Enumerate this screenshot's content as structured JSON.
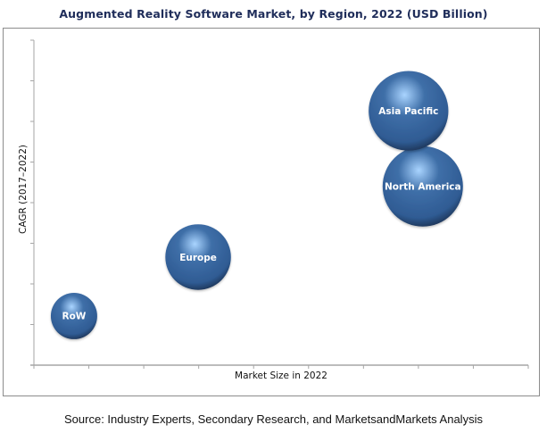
{
  "chart_data": {
    "type": "scatter",
    "subtype": "bubble",
    "title": "Augmented Reality Software Market, by Region, 2022 (USD Billion)",
    "xlabel": "Market Size in 2022",
    "ylabel": "CAGR (2017–2022)",
    "xlim": [
      0,
      9
    ],
    "ylim": [
      0,
      8
    ],
    "x_ticks": 9,
    "y_ticks": 8,
    "tick_labels_shown": false,
    "grid": false,
    "legend": "none",
    "series": [
      {
        "name": "RoW",
        "x": 0.73,
        "y": 1.21,
        "size": 1.0
      },
      {
        "name": "Europe",
        "x": 2.99,
        "y": 2.66,
        "size": 2.0
      },
      {
        "name": "North America",
        "x": 7.08,
        "y": 4.4,
        "size": 3.0
      },
      {
        "name": "Asia Pacific",
        "x": 6.82,
        "y": 6.26,
        "size": 2.95
      }
    ],
    "bubble_color": "#3f6fa8",
    "bubble_highlight": "#a9d4ff",
    "bubble_shadow": "#1b2f4e"
  },
  "source": "Source: Industry Experts, Secondary Research, and MarketsandMarkets Analysis"
}
